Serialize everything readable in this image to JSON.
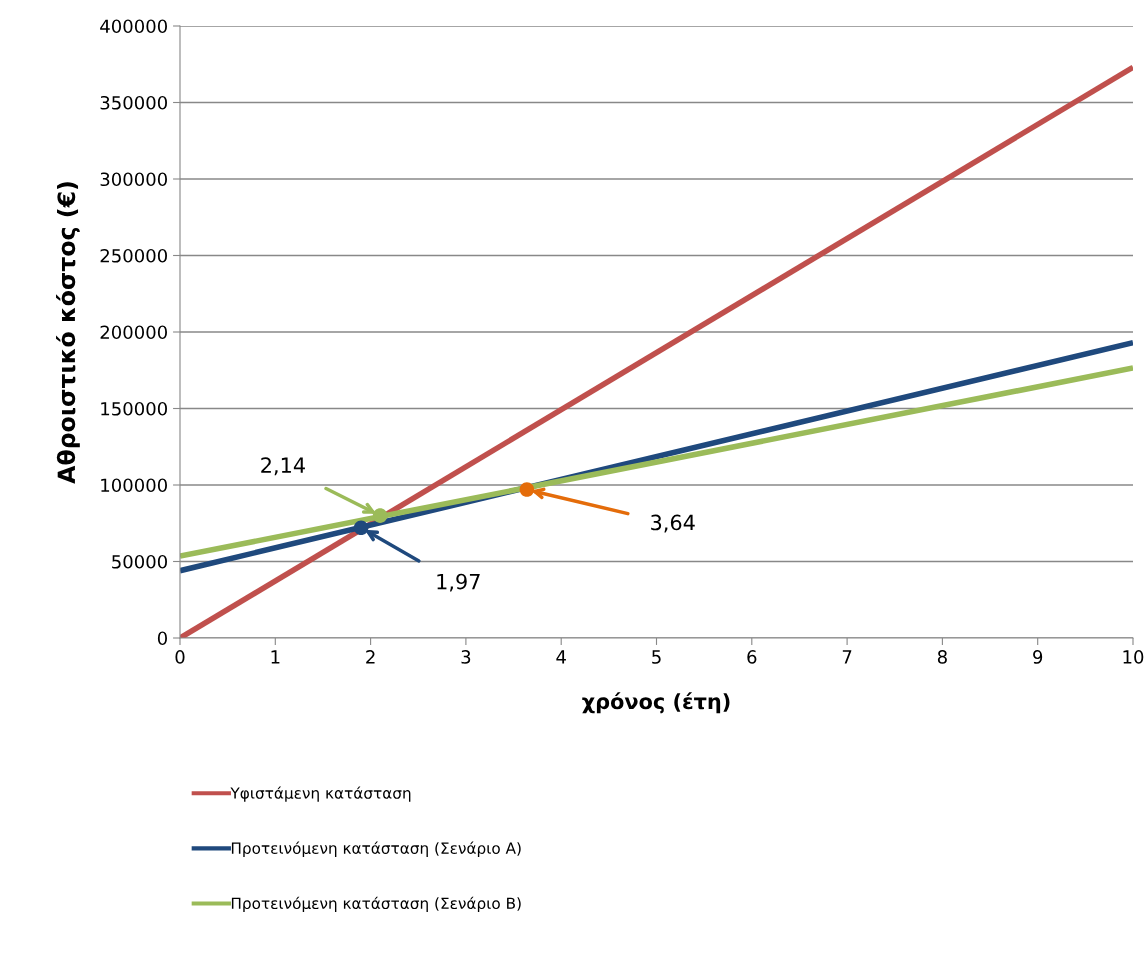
{
  "chart_data": {
    "type": "line",
    "xlabel": "χρόνος (έτη)",
    "ylabel": "Αθροιστικό κόστος (€)",
    "xlim": [
      0,
      10
    ],
    "xticks": [
      0,
      1,
      2,
      3,
      4,
      5,
      6,
      7,
      8,
      9,
      10
    ],
    "ylim": [
      0,
      400000
    ],
    "yticks": [
      0,
      50000,
      100000,
      150000,
      200000,
      250000,
      300000,
      350000,
      400000
    ],
    "grid": "y",
    "legend": "bottom",
    "series": [
      {
        "name": "Υφιστάμενη κατάσταση",
        "color": "#c0504d",
        "x": [
          0,
          10
        ],
        "values": [
          0,
          373000
        ]
      },
      {
        "name": "Προτεινόμενη κατάσταση (Σενάριο Α)",
        "color": "#1f497d",
        "x": [
          0,
          10
        ],
        "values": [
          44000,
          193000
        ]
      },
      {
        "name": "Προτεινόμενη κατάσταση (Σενάριο Β)",
        "color": "#9bbb59",
        "x": [
          0,
          10
        ],
        "values": [
          53500,
          176500
        ]
      },
      {
        "type": "scatter",
        "marker": "circle",
        "color": "#1f497d",
        "x": [
          1.9
        ],
        "values": [
          72000
        ]
      },
      {
        "type": "scatter",
        "marker": "circle",
        "color": "#9bbb59",
        "x": [
          2.1
        ],
        "values": [
          80000
        ]
      },
      {
        "type": "scatter",
        "marker": "circle",
        "color": "#e46c0a",
        "x": [
          3.64
        ],
        "values": [
          97000
        ]
      }
    ],
    "annotations": [
      {
        "text": "2,14",
        "x": 2.1,
        "y": 80000
      },
      {
        "text": "1,97",
        "x": 1.9,
        "y": 72000
      },
      {
        "text": "3,64",
        "x": 3.64,
        "y": 97000
      }
    ]
  }
}
